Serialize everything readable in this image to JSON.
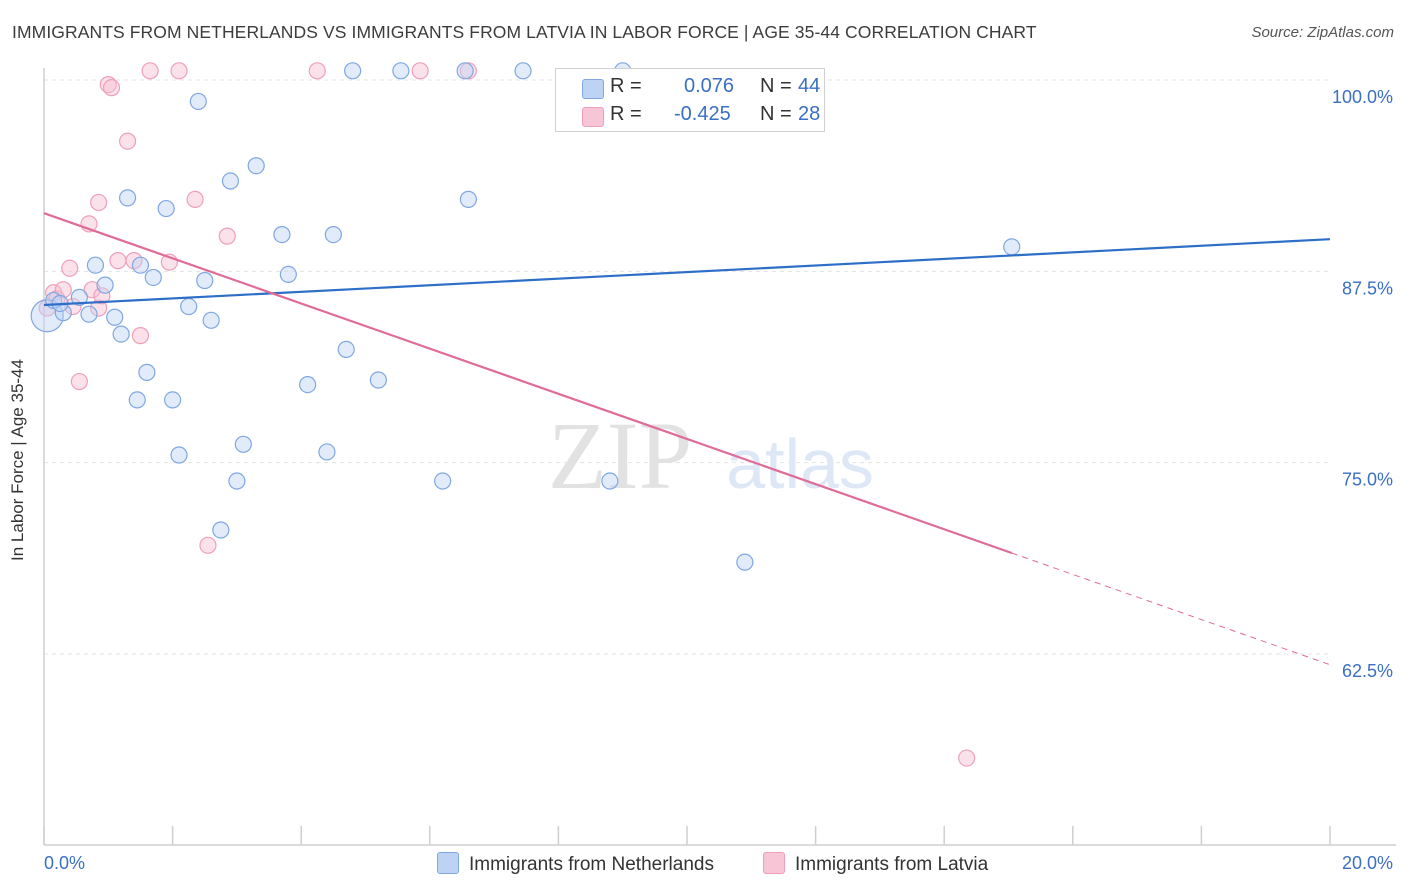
{
  "title": "IMMIGRANTS FROM NETHERLANDS VS IMMIGRANTS FROM LATVIA IN LABOR FORCE | AGE 35-44 CORRELATION CHART",
  "source": "Source: ZipAtlas.com",
  "watermark": {
    "zip": "ZIP",
    "atlas": "atlas"
  },
  "legend": {
    "series1": {
      "r_label": "R =",
      "r_value": "0.076",
      "n_label": "N =",
      "n_value": "44"
    },
    "series2": {
      "r_label": "R =",
      "r_value": "-0.425",
      "n_label": "N =",
      "n_value": "28"
    }
  },
  "chart_data": {
    "type": "scatter",
    "title": "IMMIGRANTS FROM NETHERLANDS VS IMMIGRANTS FROM LATVIA IN LABOR FORCE | AGE 35-44 CORRELATION CHART",
    "xlabel": "",
    "ylabel": "In Labor Force | Age 35-44",
    "xlim": [
      0,
      20
    ],
    "ylim": [
      50,
      101.5
    ],
    "x_tick_labels": [
      "0.0%",
      "20.0%"
    ],
    "y_ticks": [
      62.5,
      75.0,
      87.5,
      100.0
    ],
    "y_tick_labels": [
      "62.5%",
      "75.0%",
      "87.5%",
      "100.0%"
    ],
    "colors": {
      "netherlands": "#7fa7e3",
      "latvia": "#ef9fba",
      "netherlands_line": "#2d6fc7",
      "latvia_line": "#e06b98",
      "axis_text": "#3a6fc4"
    },
    "series": [
      {
        "name": "Immigrants from Netherlands",
        "r": 0.076,
        "n": 44,
        "trend": {
          "x": [
            0,
            20
          ],
          "y": [
            85.3,
            89.6
          ]
        },
        "points": [
          {
            "x": 0.05,
            "y": 84.6,
            "big": true
          },
          {
            "x": 0.3,
            "y": 84.8
          },
          {
            "x": 0.55,
            "y": 85.8
          },
          {
            "x": 0.7,
            "y": 84.7
          },
          {
            "x": 0.8,
            "y": 87.9
          },
          {
            "x": 0.95,
            "y": 86.6
          },
          {
            "x": 1.1,
            "y": 84.5
          },
          {
            "x": 1.2,
            "y": 83.4
          },
          {
            "x": 1.3,
            "y": 92.3
          },
          {
            "x": 1.5,
            "y": 87.9
          },
          {
            "x": 1.6,
            "y": 80.9
          },
          {
            "x": 1.45,
            "y": 79.1
          },
          {
            "x": 1.7,
            "y": 87.1
          },
          {
            "x": 1.9,
            "y": 91.6
          },
          {
            "x": 2.0,
            "y": 79.1
          },
          {
            "x": 2.1,
            "y": 75.5
          },
          {
            "x": 2.25,
            "y": 85.2
          },
          {
            "x": 2.4,
            "y": 98.6
          },
          {
            "x": 2.5,
            "y": 86.9
          },
          {
            "x": 2.6,
            "y": 84.3
          },
          {
            "x": 2.75,
            "y": 70.6
          },
          {
            "x": 2.9,
            "y": 93.4
          },
          {
            "x": 3.0,
            "y": 73.8
          },
          {
            "x": 3.1,
            "y": 76.2
          },
          {
            "x": 3.3,
            "y": 94.4
          },
          {
            "x": 3.7,
            "y": 89.9
          },
          {
            "x": 3.8,
            "y": 87.3
          },
          {
            "x": 4.1,
            "y": 80.1
          },
          {
            "x": 4.4,
            "y": 75.7
          },
          {
            "x": 4.5,
            "y": 89.9
          },
          {
            "x": 4.7,
            "y": 82.4
          },
          {
            "x": 4.8,
            "y": 100.6
          },
          {
            "x": 5.2,
            "y": 80.4
          },
          {
            "x": 5.55,
            "y": 100.6
          },
          {
            "x": 6.2,
            "y": 73.8
          },
          {
            "x": 6.55,
            "y": 100.6
          },
          {
            "x": 6.6,
            "y": 92.2
          },
          {
            "x": 7.45,
            "y": 100.6
          },
          {
            "x": 8.8,
            "y": 73.8
          },
          {
            "x": 9.0,
            "y": 100.6
          },
          {
            "x": 10.9,
            "y": 68.5
          },
          {
            "x": 15.05,
            "y": 89.1
          },
          {
            "x": 0.15,
            "y": 85.6
          },
          {
            "x": 0.25,
            "y": 85.4
          }
        ]
      },
      {
        "name": "Immigrants from Latvia",
        "r": -0.425,
        "n": 28,
        "trend": {
          "x": [
            0,
            15.05
          ],
          "y": [
            91.3,
            69.1
          ]
        },
        "trend_dashed": {
          "x": [
            15.05,
            20
          ],
          "y": [
            69.1,
            61.8
          ]
        },
        "points": [
          {
            "x": 0.05,
            "y": 85.1
          },
          {
            "x": 0.15,
            "y": 86.1
          },
          {
            "x": 0.2,
            "y": 85.7
          },
          {
            "x": 0.3,
            "y": 86.3
          },
          {
            "x": 0.4,
            "y": 87.7
          },
          {
            "x": 0.45,
            "y": 85.2
          },
          {
            "x": 0.55,
            "y": 80.3
          },
          {
            "x": 0.7,
            "y": 90.6
          },
          {
            "x": 0.75,
            "y": 86.3
          },
          {
            "x": 0.85,
            "y": 85.1
          },
          {
            "x": 0.85,
            "y": 92.0
          },
          {
            "x": 0.9,
            "y": 85.9
          },
          {
            "x": 1.0,
            "y": 99.7
          },
          {
            "x": 1.05,
            "y": 99.5
          },
          {
            "x": 1.15,
            "y": 88.2
          },
          {
            "x": 1.3,
            "y": 96.0
          },
          {
            "x": 1.4,
            "y": 88.2
          },
          {
            "x": 1.5,
            "y": 83.3
          },
          {
            "x": 1.65,
            "y": 100.6
          },
          {
            "x": 1.95,
            "y": 88.1
          },
          {
            "x": 2.1,
            "y": 100.6
          },
          {
            "x": 2.35,
            "y": 92.2
          },
          {
            "x": 2.55,
            "y": 69.6
          },
          {
            "x": 2.85,
            "y": 89.8
          },
          {
            "x": 4.25,
            "y": 100.6
          },
          {
            "x": 5.85,
            "y": 100.6
          },
          {
            "x": 6.6,
            "y": 100.6
          },
          {
            "x": 14.35,
            "y": 55.7
          }
        ]
      }
    ]
  },
  "bottom_legend": [
    "Immigrants from Netherlands",
    "Immigrants from Latvia"
  ]
}
